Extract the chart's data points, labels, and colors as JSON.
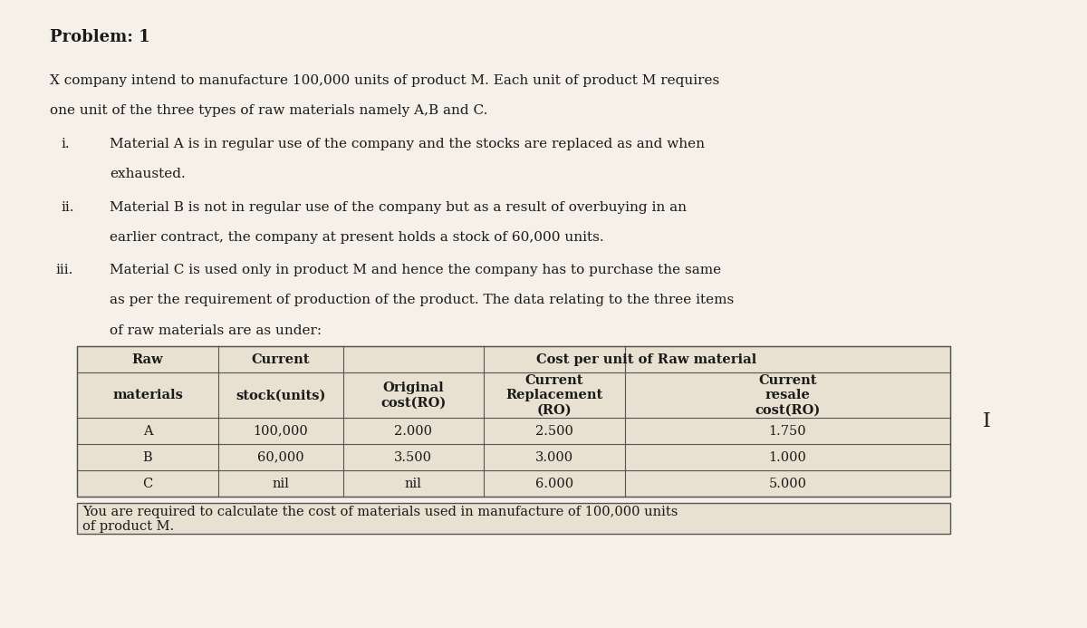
{
  "title": "Problem: 1",
  "paragraph1": "X company intend to manufacture 100,000 units of product M. Each unit of product M requires\none unit of the three types of raw materials namely A,B and C.",
  "items": [
    {
      "label": "i.",
      "text": "Material A is in regular use of the company and the stocks are replaced as and when\nexhausted."
    },
    {
      "label": "ii.",
      "text": "Material B is not in regular use of the company but as a result of overbuying in an\nearlier contract, the company at present holds a stock of 60,000 units."
    },
    {
      "label": "iii.",
      "text": "Material C is used only in product M and hence the company has to purchase the same\nas per the requirement of production of the product. The data relating to the three items\nof raw materials are as under:"
    }
  ],
  "table": {
    "col_headers_row1": [
      "Raw\nmaterials",
      "Current\nstock(units)",
      "Cost per unit of Raw material",
      "",
      ""
    ],
    "col_headers_row2": [
      "",
      "",
      "Original\ncost(RO)",
      "Current\nReplacement\n(RO)",
      "Current\nresale\ncost(RO)"
    ],
    "rows": [
      [
        "A",
        "100,000",
        "2.000",
        "2.500",
        "1.750"
      ],
      [
        "B",
        "60,000",
        "3.500",
        "3.000",
        "1.000"
      ],
      [
        "C",
        "nil",
        "nil",
        "6.000",
        "5.000"
      ]
    ]
  },
  "footer": "You are required to calculate the cost of materials used in manufacture of 100,000 units\nof product M.",
  "bg_color": "#f5f0e8",
  "text_color": "#1a1a1a",
  "table_bg": "#e8e0d0",
  "font_size_title": 13,
  "font_size_body": 11,
  "font_size_table": 10.5
}
